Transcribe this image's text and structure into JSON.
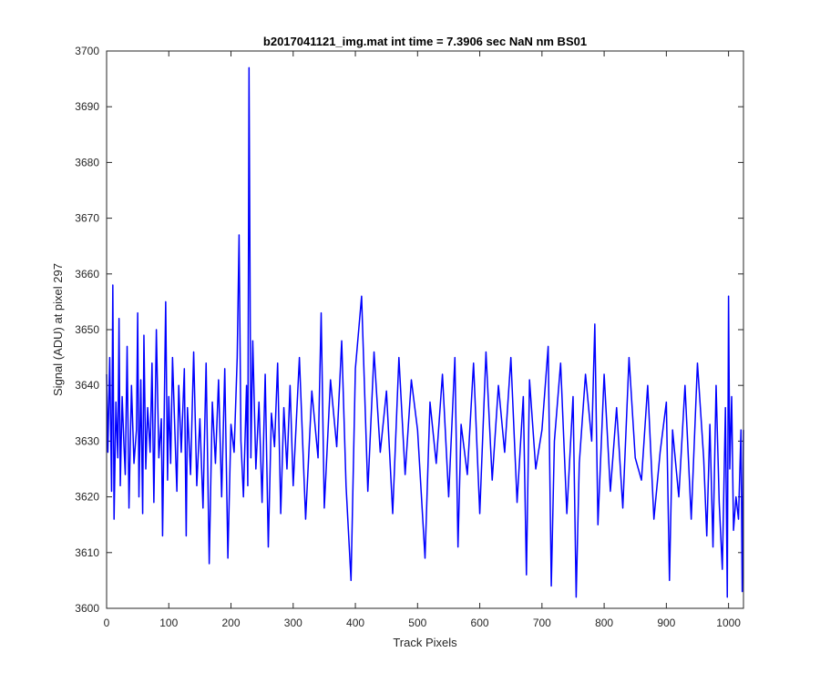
{
  "chart_data": {
    "type": "line",
    "title": "b2017041121_img.mat int time = 7.3906 sec  NaN nm BS01",
    "xlabel": "Track Pixels",
    "ylabel": "Signal (ADU) at pixel 297",
    "xlim": [
      0,
      1024
    ],
    "ylim": [
      3600,
      3700
    ],
    "xticks": [
      0,
      100,
      200,
      300,
      400,
      500,
      600,
      700,
      800,
      900,
      1000
    ],
    "yticks": [
      3600,
      3610,
      3620,
      3630,
      3640,
      3650,
      3660,
      3670,
      3680,
      3690,
      3700
    ],
    "xtick_labels": [
      "0",
      "100",
      "200",
      "300",
      "400",
      "500",
      "600",
      "700",
      "800",
      "900",
      "1000"
    ],
    "ytick_labels": [
      "3600",
      "3610",
      "3620",
      "3630",
      "3640",
      "3650",
      "3660",
      "3670",
      "3680",
      "3690",
      "3700"
    ],
    "grid": false,
    "line_color": "#0000ff",
    "series": [
      {
        "x": [
          0,
          2,
          5,
          8,
          10,
          12,
          15,
          18,
          20,
          22,
          25,
          28,
          30,
          33,
          36,
          40,
          44,
          48,
          50,
          52,
          55,
          58,
          60,
          63,
          66,
          70,
          73,
          76,
          80,
          84,
          88,
          90,
          95,
          98,
          100,
          103,
          106,
          110,
          113,
          116,
          120,
          125,
          128,
          130,
          135,
          140,
          145,
          150,
          155,
          160,
          165,
          170,
          175,
          180,
          185,
          190,
          195,
          200,
          205,
          210,
          213,
          216,
          220,
          225,
          227,
          229,
          232,
          235,
          240,
          245,
          250,
          255,
          260,
          265,
          270,
          275,
          280,
          285,
          290,
          295,
          300,
          310,
          320,
          330,
          340,
          345,
          350,
          360,
          370,
          378,
          385,
          393,
          400,
          410,
          420,
          430,
          440,
          450,
          460,
          470,
          480,
          490,
          500,
          512,
          520,
          530,
          540,
          550,
          560,
          565,
          570,
          580,
          590,
          600,
          610,
          620,
          630,
          640,
          650,
          660,
          670,
          675,
          680,
          690,
          700,
          710,
          715,
          720,
          730,
          740,
          750,
          755,
          760,
          770,
          780,
          785,
          790,
          800,
          810,
          820,
          830,
          840,
          850,
          860,
          870,
          880,
          890,
          900,
          905,
          910,
          920,
          930,
          940,
          950,
          960,
          965,
          970,
          975,
          980,
          985,
          990,
          995,
          998,
          1000,
          1002,
          1005,
          1008,
          1012,
          1016,
          1020,
          1022,
          1024
        ],
        "values": [
          3642,
          3628,
          3645,
          3621,
          3658,
          3616,
          3637,
          3627,
          3652,
          3622,
          3638,
          3629,
          3624,
          3647,
          3618,
          3640,
          3626,
          3632,
          3653,
          3620,
          3641,
          3617,
          3649,
          3625,
          3636,
          3628,
          3644,
          3619,
          3650,
          3627,
          3634,
          3613,
          3655,
          3623,
          3638,
          3626,
          3645,
          3631,
          3621,
          3640,
          3628,
          3643,
          3613,
          3636,
          3624,
          3646,
          3622,
          3634,
          3618,
          3644,
          3608,
          3637,
          3626,
          3641,
          3620,
          3643,
          3609,
          3633,
          3628,
          3645,
          3667,
          3630,
          3620,
          3640,
          3622,
          3697,
          3627,
          3648,
          3625,
          3637,
          3619,
          3642,
          3611,
          3635,
          3629,
          3644,
          3617,
          3636,
          3625,
          3640,
          3622,
          3645,
          3616,
          3639,
          3627,
          3653,
          3618,
          3641,
          3629,
          3648,
          3622,
          3605,
          3643,
          3656,
          3621,
          3646,
          3628,
          3639,
          3617,
          3645,
          3624,
          3641,
          3632,
          3609,
          3637,
          3626,
          3642,
          3620,
          3645,
          3611,
          3633,
          3624,
          3644,
          3617,
          3646,
          3623,
          3640,
          3628,
          3645,
          3619,
          3638,
          3606,
          3641,
          3625,
          3632,
          3647,
          3604,
          3630,
          3644,
          3617,
          3638,
          3602,
          3626,
          3642,
          3630,
          3651,
          3615,
          3642,
          3621,
          3636,
          3618,
          3645,
          3627,
          3623,
          3640,
          3616,
          3628,
          3637,
          3605,
          3632,
          3620,
          3640,
          3616,
          3644,
          3627,
          3613,
          3633,
          3611,
          3640,
          3619,
          3607,
          3636,
          3602,
          3656,
          3625,
          3638,
          3614,
          3620,
          3616,
          3632,
          3603,
          3632
        ]
      }
    ]
  }
}
